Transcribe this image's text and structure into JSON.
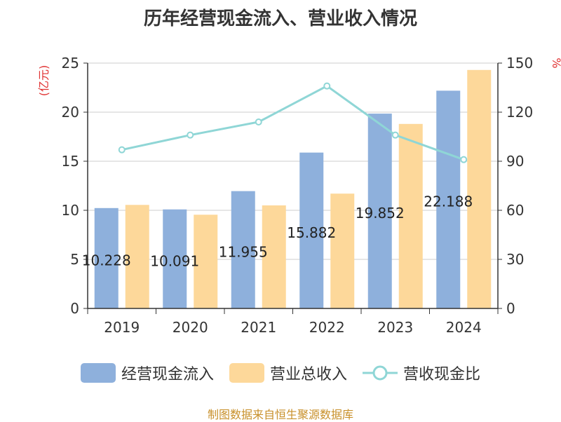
{
  "chart_data": {
    "type": "bar",
    "title": "历年经营现金流入、营业收入情况",
    "categories": [
      "2019",
      "2020",
      "2021",
      "2022",
      "2023",
      "2024"
    ],
    "series": [
      {
        "name": "经营现金流入",
        "kind": "bar",
        "axis": "left",
        "color": "#8eb0dc",
        "values": [
          10.228,
          10.091,
          11.955,
          15.882,
          19.852,
          22.188
        ],
        "data_labels": [
          "10.228",
          "10.091",
          "11.955",
          "15.882",
          "19.852",
          "22.188"
        ]
      },
      {
        "name": "营业总收入",
        "kind": "bar",
        "axis": "left",
        "color": "#fdd89a",
        "values": [
          10.55,
          9.55,
          10.5,
          11.7,
          18.8,
          24.3
        ]
      },
      {
        "name": "营收现金比",
        "kind": "line",
        "axis": "right",
        "color": "#8fd6d6",
        "values": [
          97,
          106,
          114,
          136,
          106,
          91
        ]
      }
    ],
    "y_left": {
      "unit": "(亿元)",
      "min": 0,
      "max": 25,
      "ticks": [
        0,
        5,
        10,
        15,
        20,
        25
      ]
    },
    "y_right": {
      "unit": "%",
      "min": 0,
      "max": 150,
      "ticks": [
        0,
        30,
        60,
        90,
        120,
        150
      ]
    },
    "grid": true,
    "legend_position": "bottom"
  },
  "footer": {
    "source": "制图数据来自恒生聚源数据库",
    "color": "#c8902a"
  }
}
